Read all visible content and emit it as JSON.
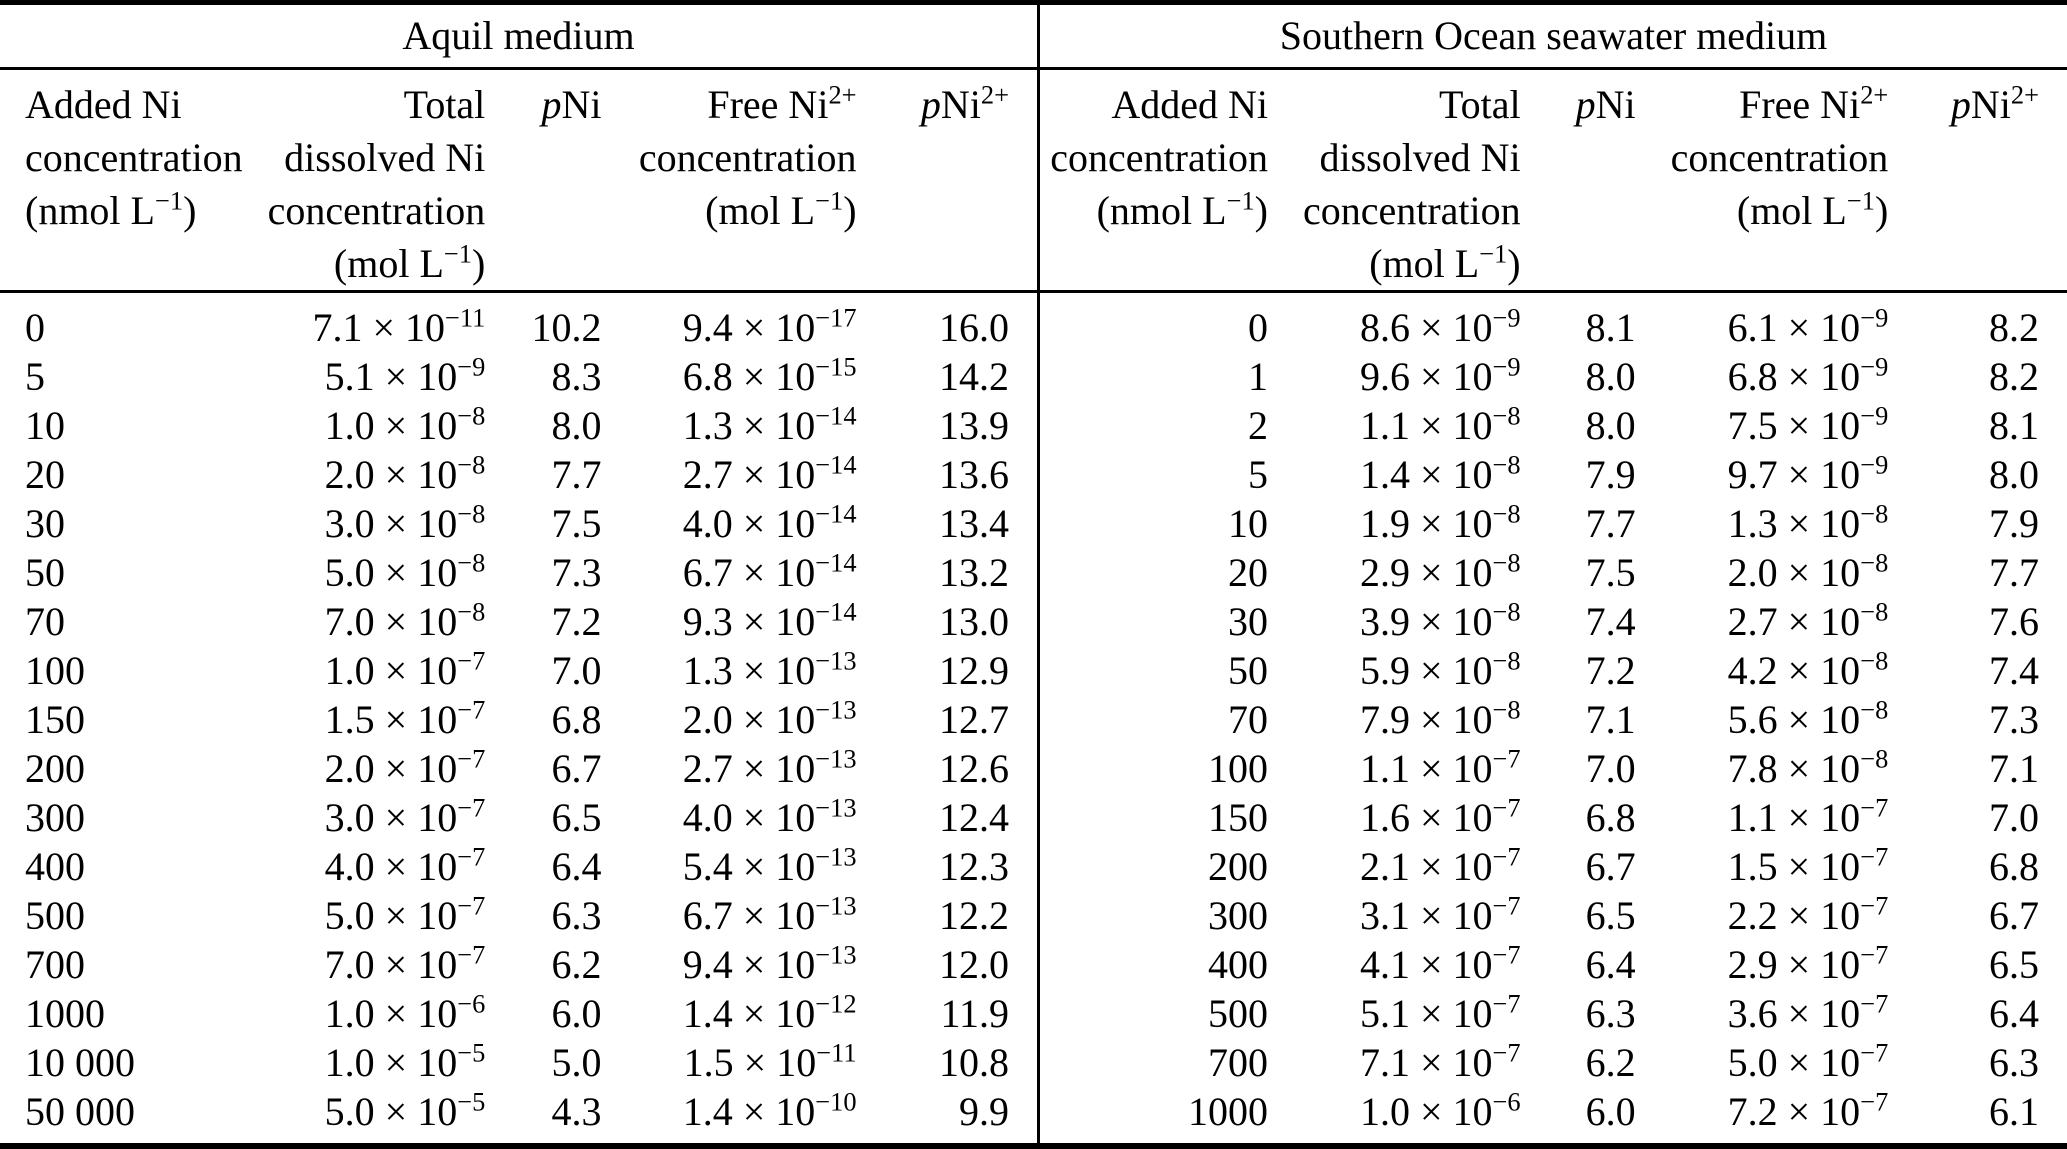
{
  "colors": {
    "background": "#ffffff",
    "text": "#000000",
    "rules": "#000000"
  },
  "tables": [
    {
      "title": "Aquil medium",
      "columns": [
        {
          "lines": [
            "Added Ni",
            "concentration",
            "(nmol L^{−1})"
          ]
        },
        {
          "lines": [
            "Total",
            "dissolved Ni",
            "concentration",
            "(mol L^{−1})"
          ]
        },
        {
          "lines": [
            "_{p}Ni"
          ]
        },
        {
          "lines": [
            "Free Ni^{2+}",
            "concentration",
            "(mol L^{−1})"
          ]
        },
        {
          "lines": [
            "_{p}Ni^{2+}"
          ]
        }
      ],
      "rows": [
        [
          "0",
          "7.1 × 10^{−11}",
          "10.2",
          "9.4 × 10^{−17}",
          "16.0"
        ],
        [
          "5",
          "5.1 × 10^{−9}",
          "8.3",
          "6.8 × 10^{−15}",
          "14.2"
        ],
        [
          "10",
          "1.0 × 10^{−8}",
          "8.0",
          "1.3 × 10^{−14}",
          "13.9"
        ],
        [
          "20",
          "2.0 × 10^{−8}",
          "7.7",
          "2.7 × 10^{−14}",
          "13.6"
        ],
        [
          "30",
          "3.0 × 10^{−8}",
          "7.5",
          "4.0 × 10^{−14}",
          "13.4"
        ],
        [
          "50",
          "5.0 × 10^{−8}",
          "7.3",
          "6.7 × 10^{−14}",
          "13.2"
        ],
        [
          "70",
          "7.0 × 10^{−8}",
          "7.2",
          "9.3 × 10^{−14}",
          "13.0"
        ],
        [
          "100",
          "1.0 × 10^{−7}",
          "7.0",
          "1.3 × 10^{−13}",
          "12.9"
        ],
        [
          "150",
          "1.5 × 10^{−7}",
          "6.8",
          "2.0 × 10^{−13}",
          "12.7"
        ],
        [
          "200",
          "2.0 × 10^{−7}",
          "6.7",
          "2.7 × 10^{−13}",
          "12.6"
        ],
        [
          "300",
          "3.0 × 10^{−7}",
          "6.5",
          "4.0 × 10^{−13}",
          "12.4"
        ],
        [
          "400",
          "4.0 × 10^{−7}",
          "6.4",
          "5.4 × 10^{−13}",
          "12.3"
        ],
        [
          "500",
          "5.0 × 10^{−7}",
          "6.3",
          "6.7 × 10^{−13}",
          "12.2"
        ],
        [
          "700",
          "7.0 × 10^{−7}",
          "6.2",
          "9.4 × 10^{−13}",
          "12.0"
        ],
        [
          "1000",
          "1.0 × 10^{−6}",
          "6.0",
          "1.4 × 10^{−12}",
          "11.9"
        ],
        [
          "10 000",
          "1.0 × 10^{−5}",
          "5.0",
          "1.5 × 10^{−11}",
          "10.8"
        ],
        [
          "50 000",
          "5.0 × 10^{−5}",
          "4.3",
          "1.4 × 10^{−10}",
          "9.9"
        ]
      ]
    },
    {
      "title": "Southern Ocean seawater medium",
      "columns": [
        {
          "lines": [
            "Added Ni",
            "concentration",
            "(nmol L^{−1})"
          ]
        },
        {
          "lines": [
            "Total",
            "dissolved Ni",
            "concentration",
            "(mol L^{−1})"
          ]
        },
        {
          "lines": [
            "_{p}Ni"
          ]
        },
        {
          "lines": [
            "Free Ni^{2+}",
            "concentration",
            "(mol L^{−1})"
          ]
        },
        {
          "lines": [
            "_{p}Ni^{2+}"
          ]
        }
      ],
      "rows": [
        [
          "0",
          "8.6 × 10^{−9}",
          "8.1",
          "6.1 × 10^{−9}",
          "8.2"
        ],
        [
          "1",
          "9.6 × 10^{−9}",
          "8.0",
          "6.8 × 10^{−9}",
          "8.2"
        ],
        [
          "2",
          "1.1 × 10^{−8}",
          "8.0",
          "7.5 × 10^{−9}",
          "8.1"
        ],
        [
          "5",
          "1.4 × 10^{−8}",
          "7.9",
          "9.7 × 10^{−9}",
          "8.0"
        ],
        [
          "10",
          "1.9 × 10^{−8}",
          "7.7",
          "1.3 × 10^{−8}",
          "7.9"
        ],
        [
          "20",
          "2.9 × 10^{−8}",
          "7.5",
          "2.0 × 10^{−8}",
          "7.7"
        ],
        [
          "30",
          "3.9 × 10^{−8}",
          "7.4",
          "2.7 × 10^{−8}",
          "7.6"
        ],
        [
          "50",
          "5.9 × 10^{−8}",
          "7.2",
          "4.2 × 10^{−8}",
          "7.4"
        ],
        [
          "70",
          "7.9 × 10^{−8}",
          "7.1",
          "5.6 × 10^{−8}",
          "7.3"
        ],
        [
          "100",
          "1.1 × 10^{−7}",
          "7.0",
          "7.8 × 10^{−8}",
          "7.1"
        ],
        [
          "150",
          "1.6 × 10^{−7}",
          "6.8",
          "1.1 × 10^{−7}",
          "7.0"
        ],
        [
          "200",
          "2.1 × 10^{−7}",
          "6.7",
          "1.5 × 10^{−7}",
          "6.8"
        ],
        [
          "300",
          "3.1 × 10^{−7}",
          "6.5",
          "2.2 × 10^{−7}",
          "6.7"
        ],
        [
          "400",
          "4.1 × 10^{−7}",
          "6.4",
          "2.9 × 10^{−7}",
          "6.5"
        ],
        [
          "500",
          "5.1 × 10^{−7}",
          "6.3",
          "3.6 × 10^{−7}",
          "6.4"
        ],
        [
          "700",
          "7.1 × 10^{−7}",
          "6.2",
          "5.0 × 10^{−7}",
          "6.3"
        ],
        [
          "1000",
          "1.0 × 10^{−6}",
          "6.0",
          "7.2 × 10^{−7}",
          "6.1"
        ]
      ]
    }
  ]
}
